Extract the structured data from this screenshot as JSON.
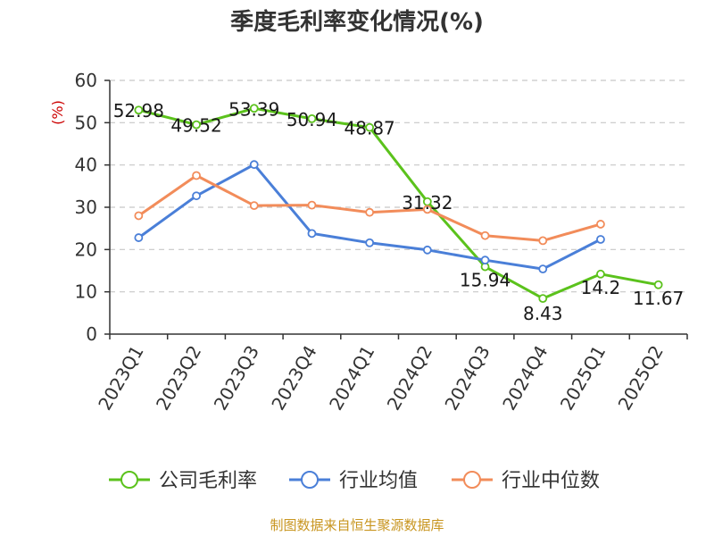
{
  "title": "季度毛利率变化情况(%)",
  "source_note": "制图数据来自恒生聚源数据库",
  "colors": {
    "company": "#5bc21c",
    "industry_avg": "#4a7fd8",
    "industry_median": "#f28c5a",
    "grid": "#c8c8c8",
    "axis": "#333333",
    "unit": "#cc0000",
    "source": "#c8951f"
  },
  "chart_data": {
    "type": "line",
    "title": "季度毛利率变化情况(%)",
    "ylabel": "(%)",
    "xlabel": "",
    "ylim": [
      0,
      60
    ],
    "yticks": [
      0,
      10,
      20,
      30,
      40,
      50,
      60
    ],
    "grid": true,
    "legend_position": "bottom",
    "categories": [
      "2023Q1",
      "2023Q2",
      "2023Q3",
      "2023Q4",
      "2024Q1",
      "2024Q2",
      "2024Q3",
      "2024Q4",
      "2025Q1",
      "2025Q2"
    ],
    "series": [
      {
        "name": "公司毛利率",
        "values": [
          52.98,
          49.52,
          53.39,
          50.94,
          48.87,
          31.32,
          15.94,
          8.43,
          14.2,
          11.67
        ],
        "labels": [
          "52.98",
          "49.52",
          "53.39",
          "50.94",
          "48.87",
          "31.32",
          "15.94",
          "8.43",
          "14.2",
          "11.67"
        ]
      },
      {
        "name": "行业均值",
        "values": [
          22.8,
          32.7,
          40.1,
          23.8,
          21.6,
          19.9,
          17.5,
          15.4,
          22.4,
          null
        ]
      },
      {
        "name": "行业中位数",
        "values": [
          28.0,
          37.5,
          30.4,
          30.5,
          28.8,
          29.5,
          23.3,
          22.1,
          26.0,
          null
        ]
      }
    ]
  }
}
